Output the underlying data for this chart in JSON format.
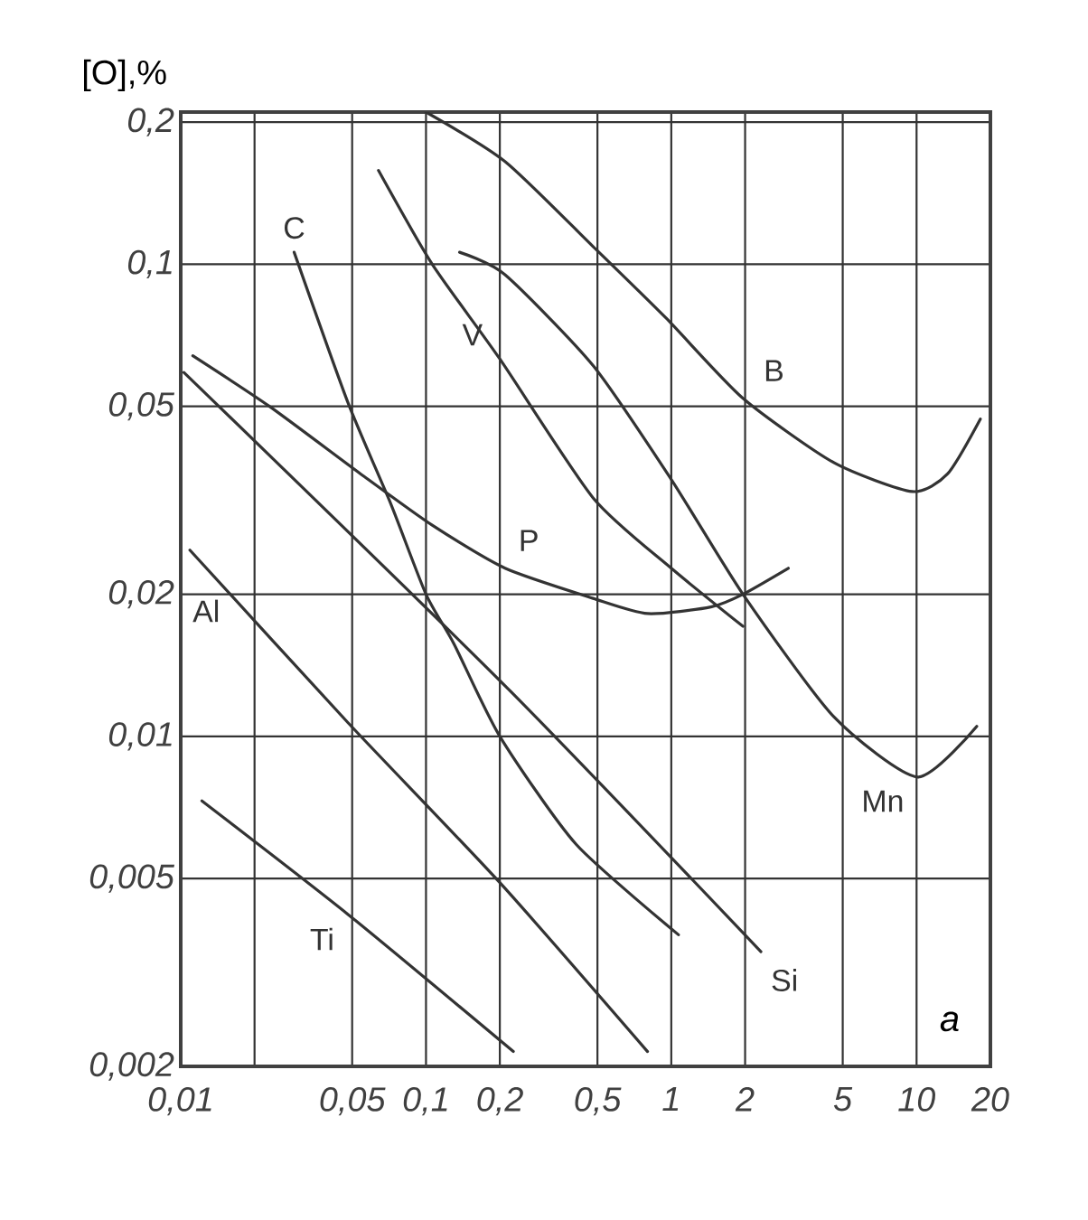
{
  "chart_data": {
    "type": "line",
    "ylabel": "[O],%",
    "log": "xy",
    "grid": true,
    "xlim": [
      0.01,
      20
    ],
    "ylim": [
      0.002,
      0.21
    ],
    "xticks": [
      {
        "value": 0.01,
        "label": "0,01"
      },
      {
        "value": 0.02,
        "label": null
      },
      {
        "value": 0.05,
        "label": "0,05"
      },
      {
        "value": 0.1,
        "label": "0,1"
      },
      {
        "value": 0.2,
        "label": "0,2"
      },
      {
        "value": 0.5,
        "label": "0,5"
      },
      1,
      2,
      5,
      10,
      20
    ],
    "yticks": [
      {
        "value": 0.002,
        "label": "0,002"
      },
      {
        "value": 0.005,
        "label": "0,005"
      },
      {
        "value": 0.01,
        "label": "0,01"
      },
      {
        "value": 0.02,
        "label": "0,02"
      },
      {
        "value": 0.05,
        "label": "0,05"
      },
      {
        "value": 0.1,
        "label": "0,1"
      },
      {
        "value": 0.2,
        "label": "0,2"
      }
    ],
    "series": [
      {
        "name": "C",
        "color": "#333333",
        "x": [
          0.029,
          0.048,
          0.072,
          0.1,
          0.13,
          0.2,
          0.41,
          1.07
        ],
        "values": [
          0.106,
          0.051,
          0.031,
          0.02,
          0.0157,
          0.01,
          0.0059,
          0.0038
        ]
      },
      {
        "name": "V",
        "color": "#333333",
        "x": [
          0.064,
          0.106,
          0.2,
          0.48,
          1.0,
          1.96
        ],
        "values": [
          0.158,
          0.1,
          0.063,
          0.032,
          0.0227,
          0.0171
        ]
      },
      {
        "name": "B",
        "color": "#333333",
        "x": [
          0.1,
          0.21,
          0.48,
          0.95,
          1.96,
          4.6,
          9.6,
          13.4,
          18.2
        ],
        "values": [
          0.21,
          0.165,
          0.109,
          0.077,
          0.052,
          0.038,
          0.033,
          0.036,
          0.047
        ]
      },
      {
        "name": "Mn",
        "color": "#333333",
        "x": [
          0.137,
          0.21,
          0.48,
          1.0,
          1.96,
          4.6,
          10.1,
          17.6
        ],
        "values": [
          0.106,
          0.095,
          0.061,
          0.035,
          0.02,
          0.011,
          0.0082,
          0.0105
        ]
      },
      {
        "name": "P",
        "color": "#333333",
        "x": [
          0.0112,
          0.023,
          0.054,
          0.106,
          0.21,
          0.48,
          0.8,
          1.45,
          1.96,
          3.0
        ],
        "values": [
          0.064,
          0.05,
          0.036,
          0.028,
          0.0227,
          0.0196,
          0.0182,
          0.0188,
          0.02,
          0.0227
        ]
      },
      {
        "name": "Si",
        "color": "#333333",
        "x": [
          0.0103,
          0.21,
          2.32
        ],
        "values": [
          0.059,
          0.0128,
          0.0035
        ]
      },
      {
        "name": "Al",
        "color": "#333333",
        "x": [
          0.0109,
          0.048,
          0.2,
          0.8
        ],
        "values": [
          0.0248,
          0.0107,
          0.0049,
          0.00215
        ]
      },
      {
        "name": "Ti",
        "color": "#333333",
        "x": [
          0.0122,
          0.048,
          0.227
        ],
        "values": [
          0.0073,
          0.0042,
          0.00215
        ]
      }
    ],
    "annotations": [
      "a"
    ]
  }
}
